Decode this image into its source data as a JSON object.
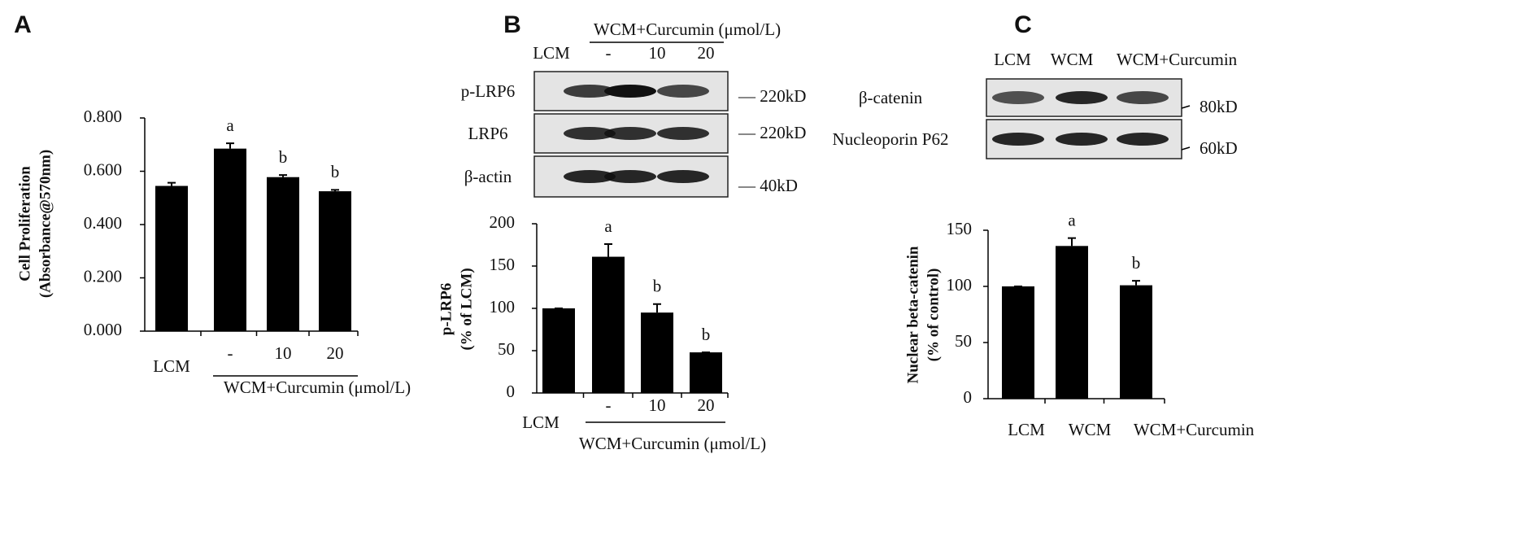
{
  "chart_data": [
    {
      "type": "bar",
      "panel": "A",
      "y_label": [
        "Cell Proliferation",
        "(Absorbance@570nm)"
      ],
      "categories": [
        "LCM",
        "-",
        "10",
        "20"
      ],
      "group_label": "WCM+Curcumin (μmol/L)",
      "values": [
        0.545,
        0.685,
        0.578,
        0.525
      ],
      "errors": [
        0.012,
        0.02,
        0.008,
        0.005
      ],
      "annotations": [
        null,
        "a",
        "b",
        "b"
      ],
      "color": "#000000",
      "ylim": [
        0,
        0.8
      ],
      "yticks": [
        {
          "value": 0,
          "label": "0.000"
        },
        {
          "value": 0.2,
          "label": "0.200"
        },
        {
          "value": 0.4,
          "label": "0.400"
        },
        {
          "value": 0.6,
          "label": "0.600"
        },
        {
          "value": 0.8,
          "label": "0.800"
        }
      ]
    },
    {
      "type": "bar",
      "panel": "B",
      "y_label": [
        "p-LRP6",
        "(% of LCM)"
      ],
      "blot": {
        "header": "WCM+Curcumin (μmol/L)",
        "lanes": [
          "LCM",
          "-",
          "10",
          "20"
        ],
        "rows": [
          {
            "name": "p-LRP6",
            "size": "— 220kD"
          },
          {
            "name": "LRP6",
            "size": "— 220kD"
          },
          {
            "name": "β-actin",
            "size": "— 40kD"
          }
        ]
      },
      "categories": [
        "LCM",
        "-",
        "10",
        "20"
      ],
      "group_label": "WCM+Curcumin (μmol/L)",
      "values": [
        100,
        161,
        95,
        48
      ],
      "errors": [
        0,
        15,
        10,
        0
      ],
      "annotations": [
        null,
        "a",
        "b",
        "b"
      ],
      "color": "#000000",
      "ylim": [
        0,
        200
      ],
      "yticks": [
        0,
        50,
        100,
        150,
        200
      ]
    },
    {
      "type": "bar",
      "panel": "C",
      "y_label": [
        "Nuclear beta-catenin",
        "(% of control)"
      ],
      "blot": {
        "lanes": [
          "LCM",
          "WCM",
          "WCM+Curcumin"
        ],
        "rows": [
          {
            "name": "β-catenin",
            "size": "80kD"
          },
          {
            "name": "Nucleoporin P62",
            "size": "60kD"
          }
        ]
      },
      "categories": [
        "LCM",
        "WCM",
        "WCM+Curcumin"
      ],
      "values": [
        100,
        136,
        101
      ],
      "errors": [
        0,
        7,
        4
      ],
      "annotations": [
        null,
        "a",
        "b"
      ],
      "color": "#000000",
      "ylim": [
        0,
        150
      ],
      "yticks": [
        0,
        50,
        100,
        150
      ]
    }
  ]
}
